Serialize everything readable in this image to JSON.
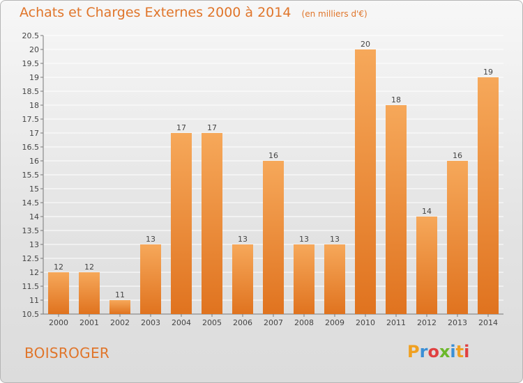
{
  "chart_data": {
    "type": "bar",
    "title": "Achats et Charges Externes 2000 à 2014",
    "unit": "(en milliers d'€)",
    "categories": [
      "2000",
      "2001",
      "2002",
      "2003",
      "2004",
      "2005",
      "2006",
      "2007",
      "2008",
      "2009",
      "2010",
      "2011",
      "2012",
      "2013",
      "2014"
    ],
    "values": [
      12,
      12,
      11,
      13,
      17,
      17,
      13,
      16,
      13,
      13,
      20,
      18,
      14,
      16,
      19
    ],
    "data_labels": [
      "12",
      "12",
      "11",
      "13",
      "17",
      "17",
      "13",
      "16",
      "13",
      "13",
      "20",
      "18",
      "14",
      "16",
      "19"
    ],
    "ylim": [
      10.5,
      20.5
    ],
    "y_ticks": [
      "10.5",
      "11",
      "11.5",
      "12",
      "12.5",
      "13",
      "13.5",
      "14",
      "14.5",
      "15",
      "15.5",
      "16",
      "16.5",
      "17",
      "17.5",
      "18",
      "18.5",
      "19",
      "19.5",
      "20",
      "20.5"
    ],
    "grid": true,
    "colors": {
      "bar_light": "#f6a85a",
      "bar_dark": "#e0731f",
      "text": "#e0752a",
      "grid": "#ffffff"
    }
  },
  "commune": "BOISROGER",
  "logo": {
    "letters": [
      "P",
      "r",
      "o",
      "x",
      "i",
      "t",
      "i"
    ],
    "colors": [
      "#f0a020",
      "#3a8fd6",
      "#e04040",
      "#6bb82a",
      "#3a8fd6",
      "#f0a020",
      "#e04040"
    ]
  }
}
